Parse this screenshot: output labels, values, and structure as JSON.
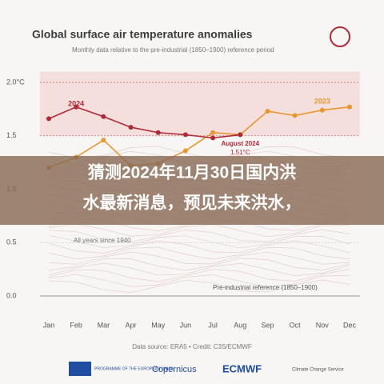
{
  "chart_data": {
    "type": "line",
    "title": "Global surface air temperature anomalies",
    "subtitle": "Monthly data relative to the pre-industrial (1850–1900) reference period",
    "categories": [
      "Jan",
      "Feb",
      "Mar",
      "Apr",
      "May",
      "Jun",
      "Jul",
      "Aug",
      "Sep",
      "Oct",
      "Nov",
      "Dec"
    ],
    "series": [
      {
        "name": "2023",
        "color": "#e8962e",
        "values": [
          1.2,
          1.3,
          1.46,
          1.22,
          1.24,
          1.36,
          1.53,
          1.51,
          1.73,
          1.69,
          1.74,
          1.77
        ]
      },
      {
        "name": "2024",
        "color": "#b02a37",
        "values": [
          1.66,
          1.77,
          1.68,
          1.58,
          1.53,
          1.51,
          1.48,
          1.51,
          null,
          null,
          null,
          null
        ]
      }
    ],
    "ylim": [
      0,
      2.1
    ],
    "yticks": [
      {
        "value": 0,
        "label": "0.0"
      },
      {
        "value": 0.5,
        "label": "0.5"
      },
      {
        "value": 1,
        "label": "1.0"
      },
      {
        "value": 1.5,
        "label": "1.5"
      },
      {
        "value": 2,
        "label": "2.0°C"
      }
    ],
    "annotations": [
      "August 2024",
      "1.51°C",
      "All years since 1940",
      "Pre-industrial reference (1850–1900)"
    ],
    "source": "Data source: ERA5 • Credit: C3S/ECMWF",
    "logos": [
      "PROGRAMME OF THE EUROPEAN UNION",
      "Copernicus",
      "ECMWF",
      "Climate Change Service"
    ]
  },
  "overlay": {
    "lines": [
      "猜测2024年11月30日国内洪",
      "水最新消息，预见未来洪水，"
    ]
  }
}
